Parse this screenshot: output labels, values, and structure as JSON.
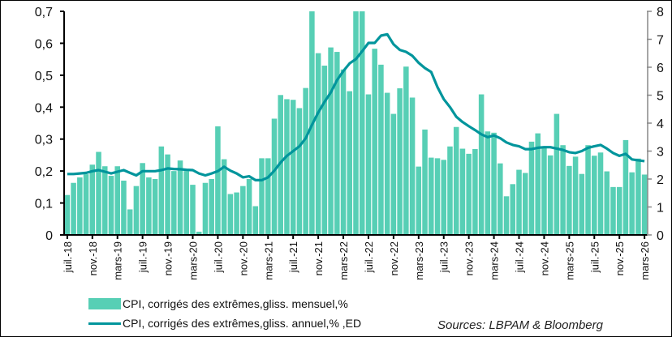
{
  "chart_data": {
    "type": "bar+line",
    "colors": {
      "bars": "#57cfb5",
      "line": "#00959c"
    },
    "y_left": {
      "range": [
        0,
        0.7
      ],
      "ticks": [
        "0",
        "0,1",
        "0,2",
        "0,3",
        "0,4",
        "0,5",
        "0,6",
        "0,7"
      ]
    },
    "y_right": {
      "range": [
        0,
        8
      ],
      "ticks": [
        "0",
        "1",
        "2",
        "3",
        "4",
        "5",
        "6",
        "7",
        "8"
      ]
    },
    "x_tick_labels": [
      "juil.-18",
      "nov.-18",
      "mars-19",
      "juil.-19",
      "nov.-19",
      "mars-20",
      "juil.-20",
      "nov.-20",
      "mars-21",
      "juil.-21",
      "nov.-21",
      "mars-22",
      "juil.-22",
      "nov.-22",
      "mars-23",
      "juil.-23",
      "nov.-23",
      "mars-24",
      "juil.-24",
      "nov.-24",
      "mars-25",
      "juil.-25",
      "nov.-25",
      "mars-26"
    ],
    "x_start": "2018-07",
    "x_end": "2026-03",
    "series": [
      {
        "name": "CPI, corrigés des extrêmes,gliss. mensuel,%",
        "type": "bar",
        "axis": "left",
        "values": [
          0.125,
          0.163,
          0.18,
          0.19,
          0.22,
          0.26,
          0.215,
          0.185,
          0.215,
          0.17,
          0.08,
          0.153,
          0.225,
          0.18,
          0.175,
          0.277,
          0.252,
          0.2,
          0.233,
          0.2,
          0.157,
          0.01,
          0.163,
          0.175,
          0.34,
          0.237,
          0.128,
          0.133,
          0.153,
          0.175,
          0.09,
          0.24,
          0.24,
          0.364,
          0.438,
          0.425,
          0.423,
          0.397,
          0.46,
          0.7,
          0.569,
          0.53,
          0.587,
          0.573,
          0.518,
          0.45,
          0.7,
          0.7,
          0.44,
          0.583,
          0.533,
          0.445,
          0.379,
          0.459,
          0.527,
          0.43,
          0.214,
          0.33,
          0.242,
          0.24,
          0.235,
          0.277,
          0.338,
          0.27,
          0.254,
          0.269,
          0.44,
          0.324,
          0.32,
          0.224,
          0.121,
          0.159,
          0.204,
          0.194,
          0.292,
          0.318,
          0.277,
          0.249,
          0.379,
          0.281,
          0.216,
          0.245,
          0.191,
          0.281,
          0.248,
          0.258,
          0.199,
          0.15,
          0.15,
          0.297,
          0.196,
          0.239,
          0.189
        ]
      },
      {
        "name": "CPI, corrigés des extrêmes,gliss. annuel,% ,ED",
        "type": "line",
        "axis": "right",
        "values": [
          2.18,
          2.18,
          2.2,
          2.22,
          2.28,
          2.32,
          2.26,
          2.2,
          2.26,
          2.32,
          2.22,
          2.13,
          2.28,
          2.28,
          2.28,
          2.32,
          2.38,
          2.36,
          2.35,
          2.33,
          2.32,
          2.2,
          2.13,
          2.2,
          2.28,
          2.44,
          2.3,
          2.2,
          2.06,
          2.1,
          1.96,
          1.96,
          2.06,
          2.3,
          2.59,
          2.83,
          3.0,
          3.17,
          3.46,
          3.94,
          4.38,
          4.76,
          5.1,
          5.54,
          5.86,
          6.14,
          6.29,
          6.57,
          6.87,
          6.87,
          7.13,
          7.18,
          6.82,
          6.62,
          6.55,
          6.41,
          6.16,
          5.97,
          5.83,
          5.29,
          4.86,
          4.57,
          4.23,
          4.04,
          3.89,
          3.75,
          3.6,
          3.5,
          3.56,
          3.46,
          3.31,
          3.22,
          3.17,
          3.07,
          3.07,
          3.12,
          3.14,
          3.14,
          3.09,
          3.04,
          2.96,
          2.93,
          3.0,
          3.12,
          3.17,
          3.22,
          3.09,
          2.93,
          2.83,
          2.9,
          2.7,
          2.67,
          2.64
        ]
      }
    ],
    "legend_placement": "bottom-left",
    "grid": false
  },
  "source": "Sources: LBPAM & Bloomberg"
}
